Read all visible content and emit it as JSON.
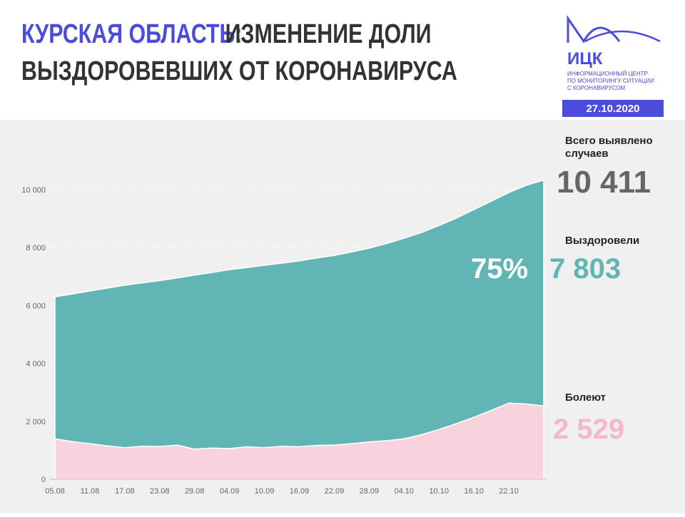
{
  "header": {
    "title_highlight": "КУРСКАЯ ОБЛАСТЬ:",
    "title_line1": "ИЗМЕНЕНИЕ ДОЛИ",
    "title_line2": "ВЫЗДОРОВЕВШИХ ОТ КОРОНАВИРУСА",
    "logo": "ИЦК",
    "logo_caption": [
      "ИНФОРМАЦИОННЫЙ ЦЕНТР",
      "ПО МОНИТОРИНГУ СИТУАЦИИ",
      "С КОРОНАВИРУСОМ"
    ],
    "date": "27.10.2020"
  },
  "chart_data": {
    "type": "stacked-area",
    "x": [
      "05.08",
      null,
      "11.08",
      null,
      "17.08",
      null,
      "23.08",
      null,
      "29.08",
      null,
      "04.09",
      null,
      "10.09",
      null,
      "16.09",
      null,
      "22.09",
      null,
      "28.09",
      null,
      "04.10",
      null,
      "10.10",
      null,
      "16.10",
      null,
      "22.10",
      null,
      null
    ],
    "series": [
      {
        "name": "Болеют",
        "color": "#f8d3dd",
        "values": [
          1400,
          1300,
          1230,
          1150,
          1090,
          1140,
          1130,
          1180,
          1040,
          1080,
          1060,
          1120,
          1090,
          1140,
          1120,
          1170,
          1180,
          1230,
          1290,
          1330,
          1400,
          1540,
          1720,
          1920,
          2140,
          2380,
          2630,
          2600,
          2529
        ]
      },
      {
        "name": "Выздоровели",
        "color": "#62b5b5",
        "values": [
          4900,
          5100,
          5270,
          5450,
          5610,
          5640,
          5730,
          5770,
          6010,
          6060,
          6180,
          6190,
          6300,
          6320,
          6420,
          6470,
          6550,
          6620,
          6690,
          6810,
          6920,
          6980,
          7040,
          7100,
          7170,
          7220,
          7270,
          7550,
          7803
        ]
      }
    ],
    "ylim": [
      0,
      10000
    ],
    "yticks": [
      0,
      {
        "value": 2000,
        "label": "2 000"
      },
      {
        "value": 4000,
        "label": "4 000"
      },
      {
        "value": 6000,
        "label": "6 000"
      },
      {
        "value": 8000,
        "label": "8 000"
      },
      {
        "value": 10000,
        "label": "10 000"
      }
    ],
    "grid": true,
    "annotations": {
      "total_label": [
        "Всего выявлено",
        "случаев"
      ],
      "total_value": "10 411",
      "recovered_share": "75%",
      "recovered_value": "7 803",
      "sick_value": "2 529"
    }
  }
}
